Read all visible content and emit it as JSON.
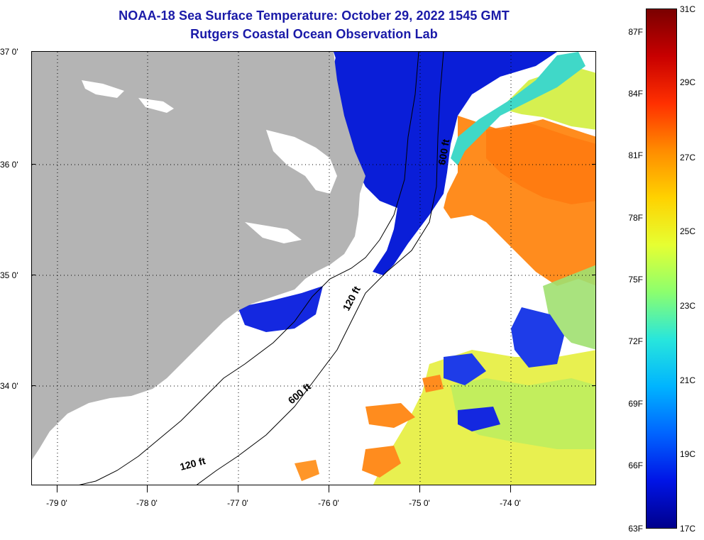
{
  "title": {
    "line1": "NOAA-18 Sea Surface Temperature:  October 29, 2022 1545 GMT",
    "line2": "Rutgers Coastal Ocean Observation Lab"
  },
  "axes": {
    "lat_labels": [
      "37 0'",
      "36 0'",
      "35 0'",
      "34 0'"
    ],
    "lon_labels": [
      "-79 0'",
      "-78 0'",
      "-77 0'",
      "-76 0'",
      "-75 0'",
      "-74 0'"
    ]
  },
  "contours": {
    "labels": [
      "600 ft",
      "120 ft",
      "600 ft",
      "120 ft"
    ]
  },
  "colorbar": {
    "fahrenheit": [
      "87F",
      "84F",
      "81F",
      "78F",
      "75F",
      "72F",
      "69F",
      "66F",
      "63F"
    ],
    "celsius": [
      "31C",
      "29C",
      "27C",
      "25C",
      "23C",
      "21C",
      "19C",
      "17C"
    ],
    "colors": [
      "#7a0000",
      "#c80000",
      "#ff3000",
      "#ff8c00",
      "#ffd200",
      "#e6ff32",
      "#8cff6e",
      "#28e6dc",
      "#00b4ff",
      "#0064ff",
      "#0014e6",
      "#00008c"
    ]
  },
  "legend": {
    "land_color": "#b4b4b4",
    "cloud_color": "#ffffff"
  }
}
